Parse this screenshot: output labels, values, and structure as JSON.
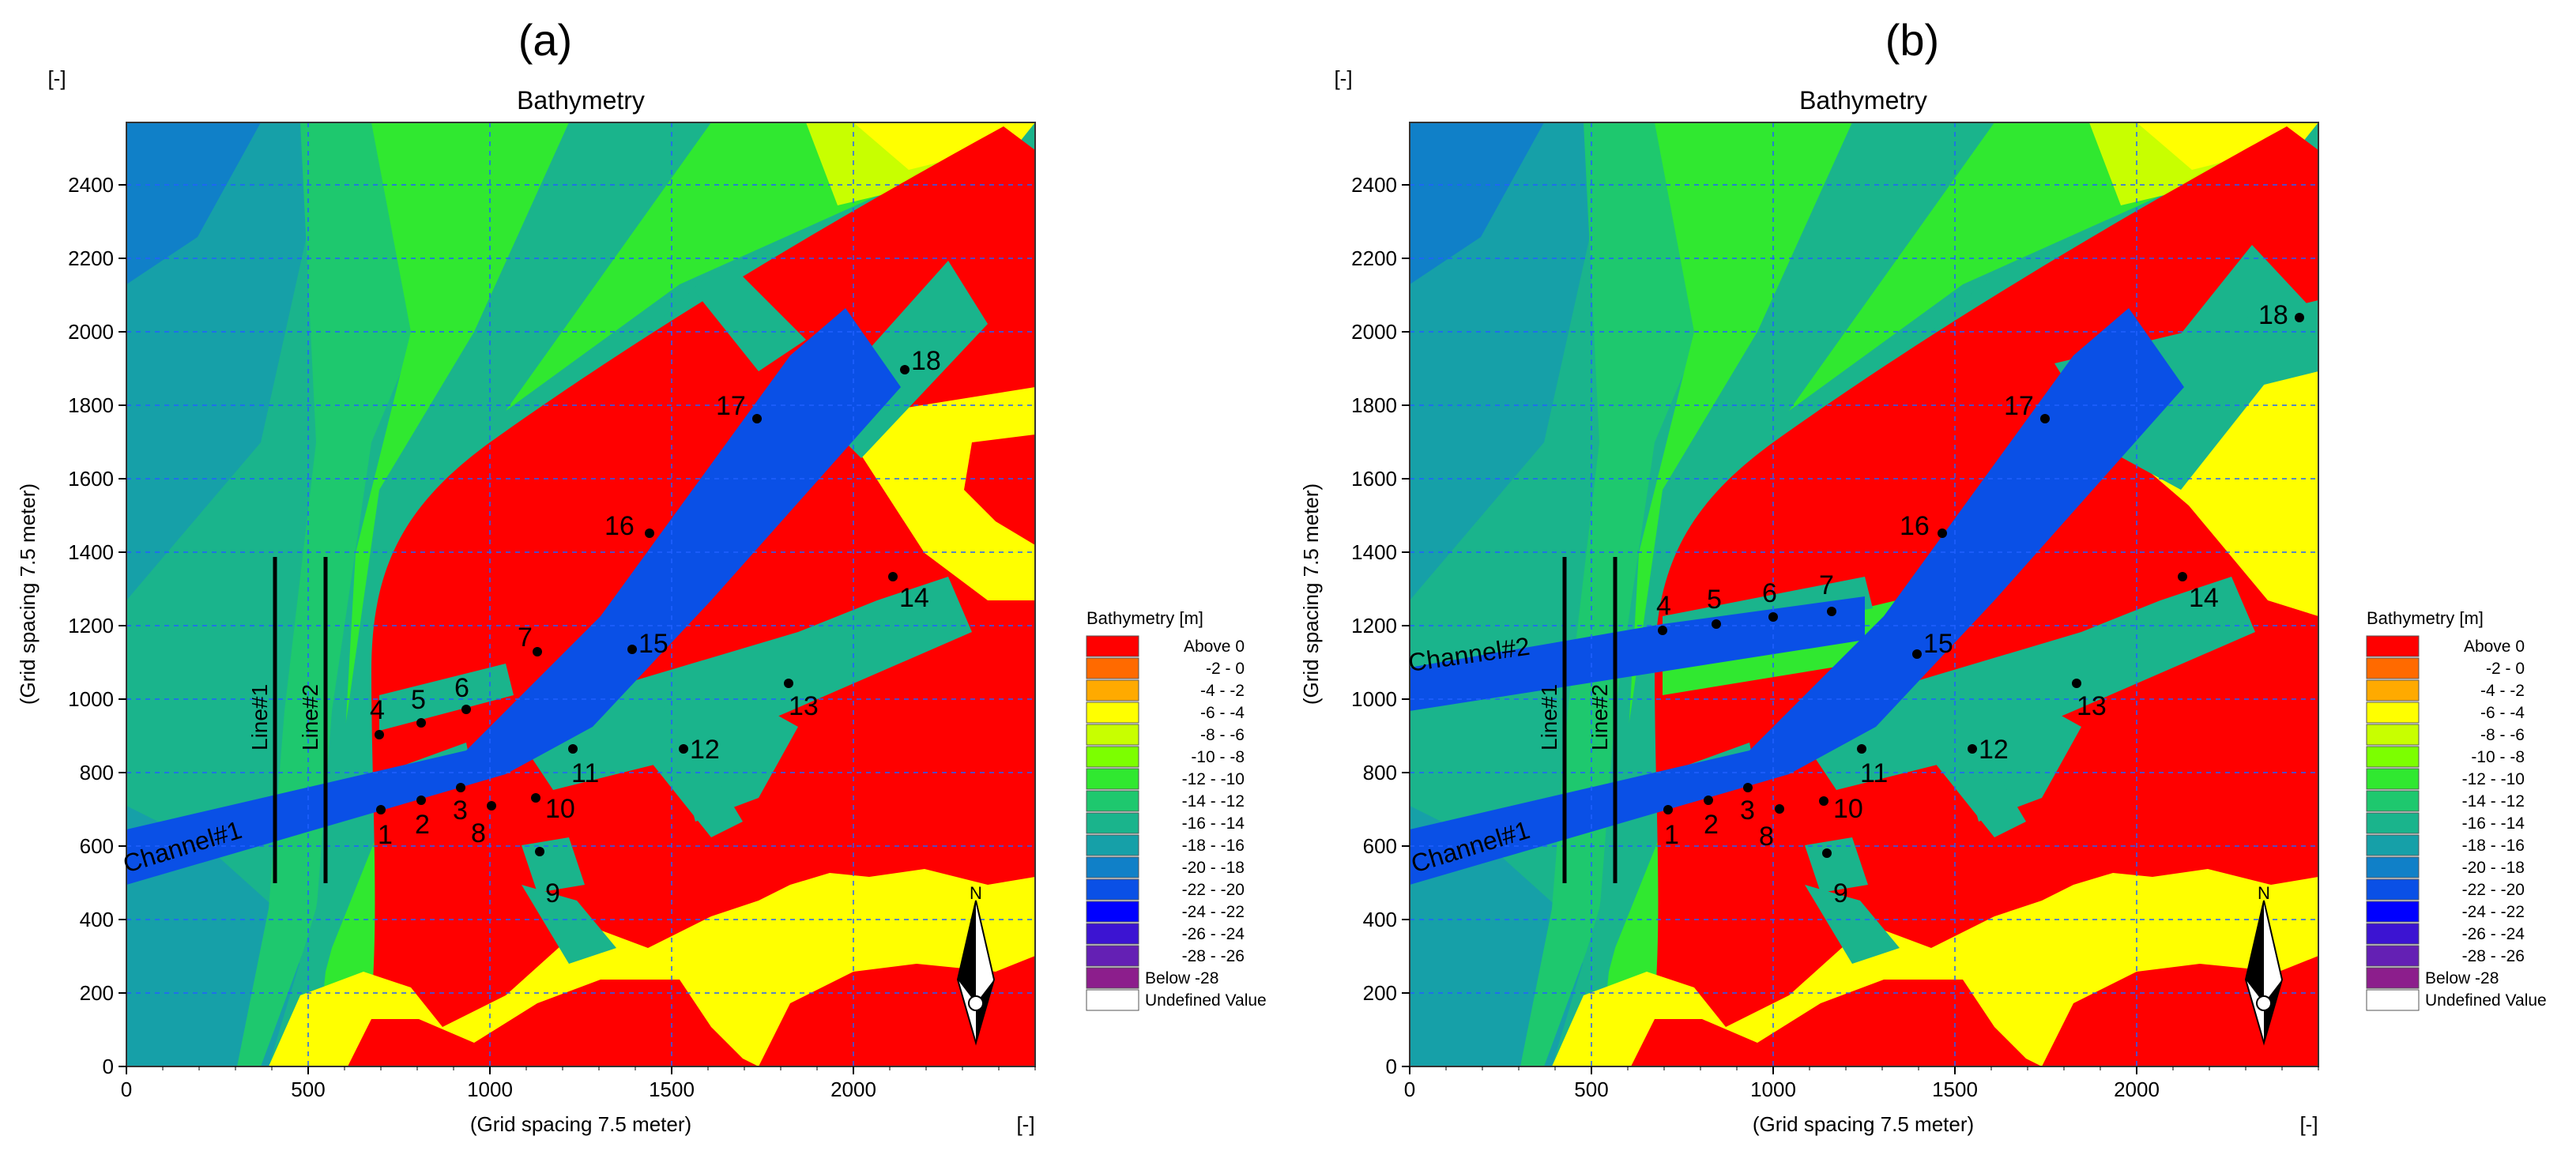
{
  "panels": [
    {
      "id": "a",
      "caption": "(a)",
      "title": "Bathymetry",
      "unit_x": "[-]",
      "unit_y": "[-]",
      "xlabel": "(Grid spacing 7.5 meter)",
      "ylabel": "(Grid spacing 7.5 meter)",
      "x_ticks": [
        "0",
        "500",
        "1000",
        "1500",
        "2000"
      ],
      "y_ticks": [
        "0",
        "200",
        "400",
        "600",
        "800",
        "1000",
        "1200",
        "1400",
        "1600",
        "1800",
        "2000",
        "2200",
        "2400"
      ],
      "lines": [
        "Line#1",
        "Line#2"
      ],
      "channels": [
        "Channel#1"
      ],
      "stations": [
        "1",
        "2",
        "3",
        "4",
        "5",
        "6",
        "7",
        "8",
        "9",
        "10",
        "11",
        "12",
        "13",
        "14",
        "15",
        "16",
        "17",
        "18"
      ],
      "legend_title": "Bathymetry [m]",
      "north_label": "N"
    },
    {
      "id": "b",
      "caption": "(b)",
      "title": "Bathymetry",
      "unit_x": "[-]",
      "unit_y": "[-]",
      "xlabel": "(Grid spacing 7.5 meter)",
      "ylabel": "(Grid spacing 7.5 meter)",
      "x_ticks": [
        "0",
        "500",
        "1000",
        "1500",
        "2000"
      ],
      "y_ticks": [
        "0",
        "200",
        "400",
        "600",
        "800",
        "1000",
        "1200",
        "1400",
        "1600",
        "1800",
        "2000",
        "2200",
        "2400"
      ],
      "lines": [
        "Line#1",
        "Line#2"
      ],
      "channels": [
        "Channel#1",
        "Channel#2"
      ],
      "stations": [
        "1",
        "2",
        "3",
        "4",
        "5",
        "6",
        "7",
        "8",
        "9",
        "10",
        "11",
        "12",
        "13",
        "14",
        "15",
        "16",
        "17",
        "18"
      ],
      "legend_title": "Bathymetry [m]",
      "north_label": "N"
    }
  ],
  "legend": [
    {
      "label": "Above  0",
      "color": "#ff0000"
    },
    {
      "label": "-2 -  0",
      "color": "#ff6a00"
    },
    {
      "label": "-4 - -2",
      "color": "#ffaa00"
    },
    {
      "label": "-6 - -4",
      "color": "#ffff00"
    },
    {
      "label": "-8 - -6",
      "color": "#c8ff00"
    },
    {
      "label": "-10 - -8",
      "color": "#7cff00"
    },
    {
      "label": "-12 - -10",
      "color": "#30e830"
    },
    {
      "label": "-14 - -12",
      "color": "#1ec86e"
    },
    {
      "label": "-16 - -14",
      "color": "#1ab48c"
    },
    {
      "label": "-18 - -16",
      "color": "#16a0a8"
    },
    {
      "label": "-20 - -18",
      "color": "#1080c8"
    },
    {
      "label": "-22 - -20",
      "color": "#0a50e6"
    },
    {
      "label": "-24 - -22",
      "color": "#0000ff"
    },
    {
      "label": "-26 - -24",
      "color": "#3c14d2"
    },
    {
      "label": "-28 - -26",
      "color": "#6420b4"
    },
    {
      "label": "Below -28",
      "color": "#8c1e8c"
    },
    {
      "label": "Undefined Value",
      "color": "#ffffff"
    }
  ],
  "colors": {
    "land": "#ff0000",
    "shallow": "#ffff00",
    "mid": "#30e830",
    "basin": "#1ab48c",
    "channel": "#0a50e6",
    "deep": "#1080c8",
    "grid": "#2060ff"
  }
}
